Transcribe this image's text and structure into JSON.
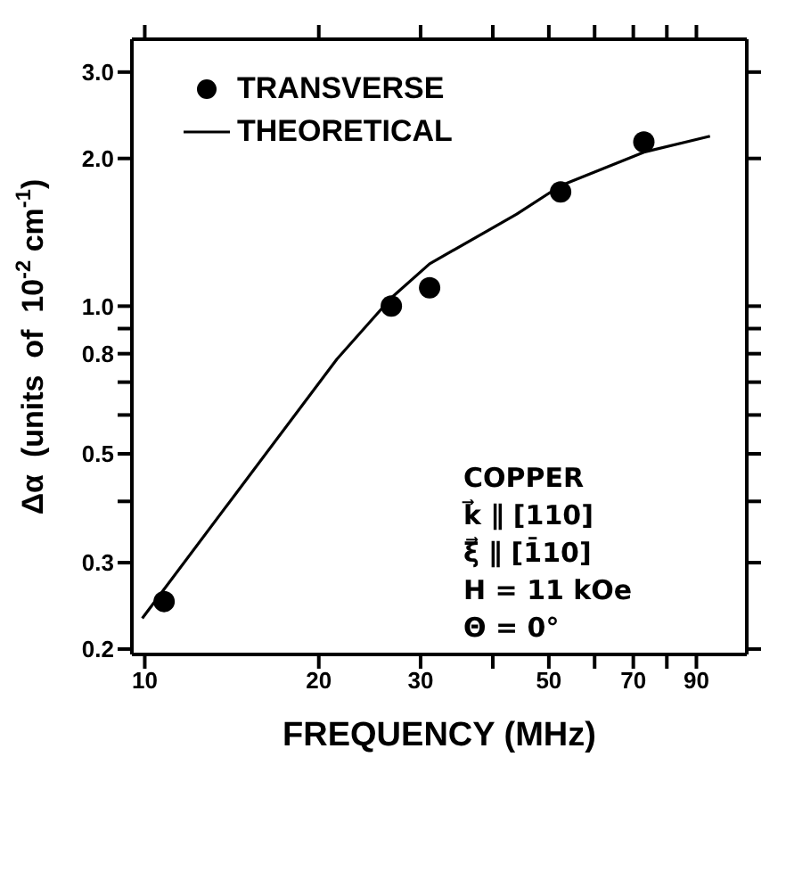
{
  "chart_data": {
    "type": "scatter",
    "ylabel": "Δα  (units  of  10$^{-2}$ cm$^{-1}$)",
    "xlabel": "FREQUENCY (MHz)",
    "log": "xy",
    "legend": "top left",
    "xlim": [
      9.5,
      110
    ],
    "ylim": [
      0.195,
      3.5
    ],
    "xticks": [
      10,
      20,
      30,
      {
        "value": 40,
        "label": null
      },
      50,
      {
        "value": 60,
        "label": null
      },
      70,
      {
        "value": 80,
        "label": null
      },
      90
    ],
    "yticks": [
      0.2,
      0.3,
      {
        "value": 0.4,
        "label": null
      },
      0.5,
      {
        "value": 0.6,
        "label": null
      },
      {
        "value": 0.7,
        "label": null
      },
      0.8,
      {
        "value": 0.9,
        "label": null
      },
      {
        "value": 1,
        "label": "1.0"
      },
      {
        "value": 2,
        "label": "2.0"
      },
      {
        "value": 3,
        "label": "3.0"
      }
    ],
    "annotations": [
      "COPPER",
      "k⃗ ∥ [110]",
      "ξ⃗ ∥ [1̄10]",
      "H = 11 kOe",
      "Θ = 0°"
    ],
    "series": [
      {
        "name": "TRANSVERSE",
        "type": "scatter",
        "marker": "circle",
        "color": "#000000",
        "x": [
          10.8,
          26.7,
          31.1,
          52.4,
          73
        ],
        "values": [
          0.25,
          1.0,
          1.09,
          1.71,
          2.16
        ]
      },
      {
        "name": "THEORETICAL",
        "type": "line",
        "marker": "none",
        "line_style": "solid",
        "color": "#000000",
        "x": [
          9.9,
          14.4,
          21.5,
          26.7,
          31.1,
          44,
          52.4,
          73,
          95
        ],
        "values": [
          0.231,
          0.416,
          0.78,
          1.04,
          1.22,
          1.54,
          1.76,
          2.06,
          2.22
        ]
      }
    ]
  }
}
